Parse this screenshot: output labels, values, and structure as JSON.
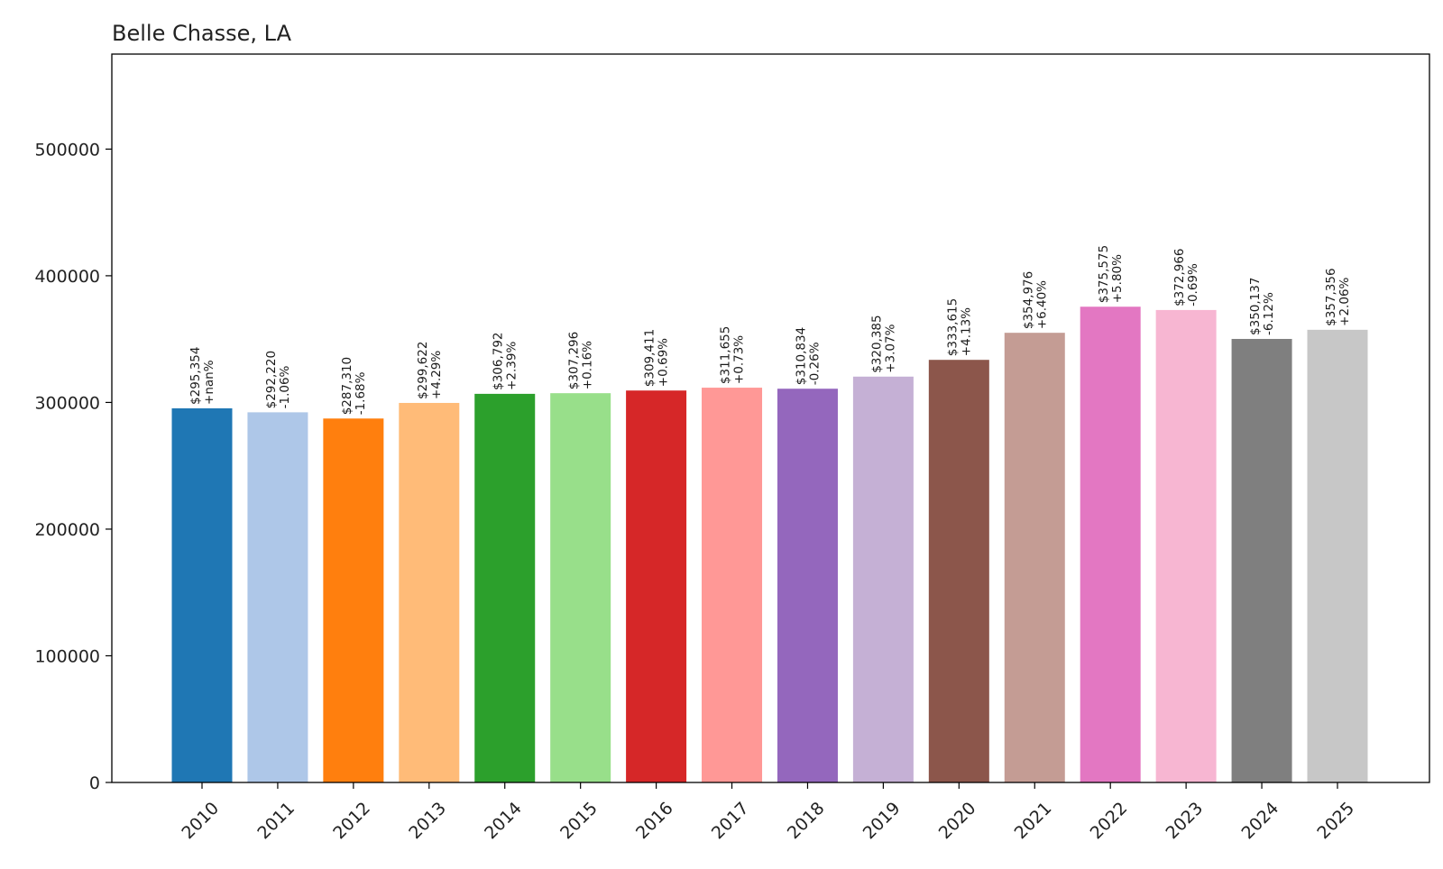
{
  "chart_data": {
    "type": "bar",
    "title": "Belle Chasse, LA",
    "xlabel": "",
    "ylabel": "",
    "categories": [
      "2010",
      "2011",
      "2012",
      "2013",
      "2014",
      "2015",
      "2016",
      "2017",
      "2018",
      "2019",
      "2020",
      "2021",
      "2022",
      "2023",
      "2024",
      "2025"
    ],
    "values": [
      295354,
      292220,
      287310,
      299622,
      306792,
      307296,
      309411,
      311655,
      310834,
      320385,
      333615,
      354976,
      375575,
      372966,
      350137,
      357356
    ],
    "value_labels": [
      "$295,354",
      "$292,220",
      "$287,310",
      "$299,622",
      "$306,792",
      "$307,296",
      "$309,411",
      "$311,655",
      "$310,834",
      "$320,385",
      "$333,615",
      "$354,976",
      "$375,575",
      "$372,966",
      "$350,137",
      "$357,356"
    ],
    "change_labels": [
      "+nan%",
      "-1.06%",
      "-1.68%",
      "+4.29%",
      "+2.39%",
      "+0.16%",
      "+0.69%",
      "+0.73%",
      "-0.26%",
      "+3.07%",
      "+4.13%",
      "+6.40%",
      "+5.80%",
      "-0.69%",
      "-6.12%",
      "+2.06%"
    ],
    "colors": [
      "#1f77b4",
      "#aec7e8",
      "#ff7f0e",
      "#ffbb78",
      "#2ca02c",
      "#98df8a",
      "#d62728",
      "#ff9896",
      "#9467bd",
      "#c5b0d5",
      "#8c564b",
      "#c49c94",
      "#e377c2",
      "#f7b6d2",
      "#7f7f7f",
      "#c7c7c7"
    ],
    "y_ticks": [
      "0",
      "100000",
      "200000",
      "300000",
      "400000",
      "500000"
    ],
    "ylim": [
      0,
      575000
    ],
    "grid": false,
    "legend": "none"
  }
}
